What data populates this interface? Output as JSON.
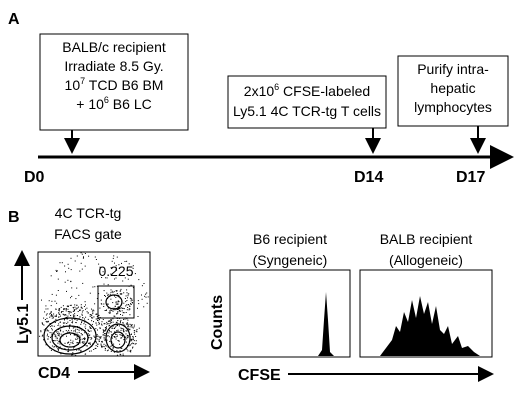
{
  "panel_a": {
    "label": "A",
    "boxes": [
      {
        "lines": [
          [
            {
              "text": "BALB/c recipient"
            }
          ],
          [
            {
              "text": "Irradiate 8.5 Gy."
            }
          ],
          [
            {
              "text": "10"
            },
            {
              "sup": "7"
            },
            {
              "text": " TCD B6 BM"
            }
          ],
          [
            {
              "text": "+ 10"
            },
            {
              "sup": "6"
            },
            {
              "text": " B6 LC"
            }
          ]
        ]
      },
      {
        "lines": [
          [
            {
              "text": "2x10"
            },
            {
              "sup": "6"
            },
            {
              "text": " CFSE-labeled"
            }
          ],
          [
            {
              "text": "Ly5.1 4C TCR-tg T cells"
            }
          ]
        ]
      },
      {
        "lines": [
          [
            {
              "text": "Purify intra-"
            }
          ],
          [
            {
              "text": "hepatic"
            }
          ],
          [
            {
              "text": "lymphocytes"
            }
          ]
        ]
      }
    ],
    "timeline": [
      "D0",
      "D14",
      "D17"
    ]
  },
  "panel_b": {
    "label": "B",
    "gate_plot": {
      "title": [
        "4C TCR-tg",
        "FACS gate"
      ],
      "gate_value": "0.225",
      "y_label": "Ly5.1",
      "x_label": "CD4"
    },
    "histograms": [
      {
        "title": [
          "B6 recipient",
          "(Syngeneic)"
        ]
      },
      {
        "title": [
          "BALB recipient",
          "(Allogeneic)"
        ]
      }
    ],
    "y_label": "Counts",
    "x_label": "CFSE"
  }
}
